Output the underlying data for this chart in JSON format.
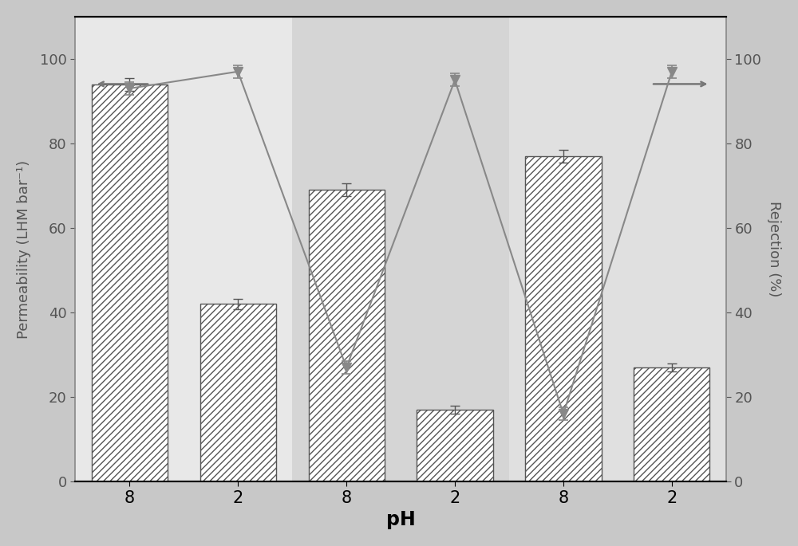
{
  "bar_positions": [
    1,
    2,
    3,
    4,
    5,
    6
  ],
  "bar_heights": [
    94,
    42,
    69,
    17,
    77,
    27
  ],
  "bar_errors": [
    1.5,
    1.2,
    1.5,
    1.0,
    1.5,
    1.0
  ],
  "line_values": [
    93,
    97,
    27,
    95,
    16,
    97
  ],
  "line_errors": [
    1.5,
    1.5,
    1.5,
    1.5,
    1.5,
    1.5
  ],
  "x_tick_labels": [
    "8",
    "2",
    "8",
    "2",
    "8",
    "2"
  ],
  "xlabel": "pH",
  "ylabel_left": "Permeability (LHM bar⁻¹)",
  "ylabel_right": "Rejection (%)",
  "ylim_left": [
    0,
    110
  ],
  "ylim_right": [
    0,
    110
  ],
  "yticks_left": [
    0,
    20,
    40,
    60,
    80,
    100
  ],
  "yticks_right": [
    0,
    20,
    40,
    60,
    80,
    100
  ],
  "bar_hatch": "////",
  "line_color": "#888888",
  "bar_edge_color": "#555555",
  "band1_color": "#e8e8e8",
  "band2_color": "#d5d5d5",
  "band3_color": "#e0e0e0",
  "figure_bg": "#c8c8c8",
  "axes_bg": "#e8e8e8"
}
